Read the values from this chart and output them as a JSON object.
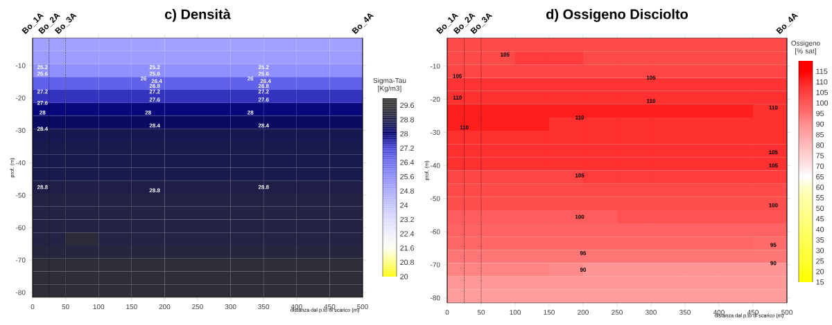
{
  "chart_data": [
    {
      "type": "heatmap",
      "title": "c) Densità",
      "xlabel": "distanza dal p.to di scarico (m)",
      "ylabel": "prof. (m)",
      "clabel": "Sigma-Tau [Kg/m3]",
      "x": [
        25,
        75,
        125,
        175,
        225,
        275,
        325,
        375,
        425,
        475
      ],
      "y": [
        -3.5,
        -7.5,
        -11.5,
        -15.5,
        -19.5,
        -23.5,
        -27.5,
        -31.5,
        -35.5,
        -39.5,
        -43.5,
        -47.5,
        -51.5,
        -55.5,
        -59.5,
        -63.5,
        -67.5,
        -71.5,
        -75.5,
        -79.5
      ],
      "cells": [
        [
          25.0,
          25.0,
          25.0,
          25.0,
          25.0,
          25.0,
          25.0,
          25.0,
          25.0,
          25.0
        ],
        [
          25.1,
          25.1,
          25.1,
          25.1,
          25.1,
          25.1,
          25.1,
          25.1,
          25.1,
          25.1
        ],
        [
          25.5,
          25.5,
          25.5,
          25.5,
          25.5,
          25.5,
          25.5,
          25.5,
          25.5,
          25.5
        ],
        [
          26.6,
          26.6,
          26.6,
          26.6,
          26.6,
          26.6,
          26.6,
          26.6,
          26.6,
          26.6
        ],
        [
          27.4,
          27.4,
          27.4,
          27.4,
          27.4,
          27.4,
          27.4,
          27.4,
          27.4,
          27.4
        ],
        [
          27.9,
          27.9,
          27.9,
          27.9,
          27.9,
          27.9,
          27.9,
          27.9,
          27.9,
          27.9
        ],
        [
          28.3,
          28.3,
          28.3,
          28.3,
          28.3,
          28.3,
          28.3,
          28.3,
          28.3,
          28.3
        ],
        [
          28.6,
          28.6,
          28.6,
          28.6,
          28.6,
          28.6,
          28.6,
          28.6,
          28.6,
          28.6
        ],
        [
          28.7,
          28.7,
          28.7,
          28.7,
          28.7,
          28.7,
          28.7,
          28.7,
          28.7,
          28.7
        ],
        [
          28.7,
          28.7,
          28.7,
          28.7,
          28.7,
          28.7,
          28.7,
          28.7,
          28.7,
          28.7
        ],
        [
          28.7,
          28.7,
          28.7,
          28.7,
          28.7,
          28.7,
          28.7,
          28.7,
          28.7,
          28.7
        ],
        [
          28.8,
          28.8,
          28.8,
          28.8,
          28.8,
          28.8,
          28.8,
          28.8,
          28.8,
          28.8
        ],
        [
          29.0,
          29.0,
          29.0,
          29.0,
          29.0,
          29.0,
          29.0,
          29.0,
          29.0,
          29.0
        ],
        [
          29.0,
          29.0,
          29.0,
          29.0,
          29.0,
          29.0,
          29.0,
          29.0,
          29.0,
          29.0
        ],
        [
          29.0,
          29.0,
          29.0,
          29.0,
          29.0,
          29.0,
          29.0,
          29.0,
          29.0,
          29.0
        ],
        [
          29.0,
          29.3,
          29.0,
          29.0,
          29.0,
          29.0,
          29.0,
          29.0,
          29.0,
          29.0
        ],
        [
          29.1,
          29.1,
          29.1,
          29.1,
          29.1,
          29.1,
          29.1,
          29.1,
          29.1,
          29.1
        ],
        [
          29.4,
          29.4,
          29.4,
          29.4,
          29.4,
          29.4,
          29.4,
          29.4,
          29.4,
          29.4
        ],
        [
          29.4,
          29.4,
          29.4,
          29.4,
          29.4,
          29.4,
          29.4,
          29.4,
          29.4,
          29.4
        ],
        [
          29.4,
          29.4,
          29.4,
          29.4,
          29.4,
          29.4,
          29.4,
          29.4,
          29.4,
          29.4
        ]
      ],
      "xlim": [
        0,
        500
      ],
      "ylim": [
        -81.5,
        -1.5
      ],
      "xticks": [
        0,
        50,
        100,
        150,
        200,
        250,
        300,
        350,
        400,
        450,
        500
      ],
      "yticks": [
        -80,
        -70,
        -60,
        -50,
        -40,
        -30,
        -20,
        -10
      ],
      "clim": [
        20,
        30
      ],
      "cticks": [
        20,
        20.8,
        21.6,
        22.4,
        23.2,
        24,
        24.8,
        25.6,
        26.4,
        27.2,
        28,
        28.8,
        29.6
      ],
      "colors": [
        "#ffff00",
        "#ffff80",
        "#fffff0",
        "#f0f0ff",
        "#dcdcff",
        "#c4c4ff",
        "#a8a8ff",
        "#8c8cff",
        "#6b6bf0",
        "#4444d8",
        "#000070",
        "#1e1e48",
        "#333333"
      ],
      "ref_lines": [
        {
          "axis": "x",
          "value": 0,
          "label": "Bo_1A",
          "line_style": "solid"
        },
        {
          "axis": "x",
          "value": 25,
          "label": "Bo_2A",
          "line_style": "dotted"
        },
        {
          "axis": "x",
          "value": 50,
          "label": "Bo_3A",
          "line_style": "dotted"
        },
        {
          "axis": "x",
          "value": 500,
          "label": "Bo_4A",
          "line_style": "solid"
        }
      ],
      "annotations": [
        "25.2",
        "25.6",
        "27.2",
        "27.6",
        "28",
        "28.4",
        "28.8",
        "25.2",
        "25.6",
        "26",
        "26.4",
        "26.8",
        "27.2",
        "27.6",
        "28",
        "28.4",
        "28.8",
        "25.2",
        "25.6",
        "26",
        "26.4",
        "26.8",
        "27.2",
        "27.6",
        "28",
        "28.4",
        "28.8"
      ]
    },
    {
      "type": "heatmap",
      "title": "d) Ossigeno Disciolto",
      "xlabel": "distanza dal p.to di scarico (m)",
      "ylabel": "prof. (m)",
      "clabel": "Ossigeno [% sat]",
      "x": [
        25,
        75,
        125,
        175,
        225,
        275,
        325,
        375,
        425,
        475
      ],
      "y": [
        -3.5,
        -7.5,
        -11.5,
        -15.5,
        -19.5,
        -23.5,
        -27.5,
        -31.5,
        -35.5,
        -39.5,
        -43.5,
        -47.5,
        -51.5,
        -55.5,
        -59.5,
        -63.5,
        -67.5,
        -71.5,
        -75.5,
        -79.5
      ],
      "cells": [
        [
          103,
          103,
          103,
          103,
          103,
          103,
          103,
          103,
          103,
          103
        ],
        [
          103,
          103,
          106,
          106,
          103,
          103,
          103,
          103,
          103,
          103
        ],
        [
          104,
          104,
          104,
          104,
          104,
          104,
          104,
          104,
          104,
          104
        ],
        [
          107,
          107,
          107,
          107,
          107,
          107,
          107,
          107,
          107,
          107
        ],
        [
          108,
          108,
          108,
          108,
          108,
          108,
          108,
          108,
          108,
          108
        ],
        [
          111,
          111,
          111,
          111,
          111,
          111,
          111,
          111,
          111,
          108
        ],
        [
          111,
          111,
          111,
          108,
          108,
          108,
          108,
          108,
          108,
          108
        ],
        [
          108,
          108,
          108,
          108,
          108,
          108,
          108,
          108,
          108,
          108
        ],
        [
          108,
          108,
          108,
          108,
          108,
          108,
          108,
          108,
          108,
          108
        ],
        [
          108,
          108,
          108,
          108,
          108,
          108,
          108,
          108,
          108,
          108
        ],
        [
          104,
          104,
          104,
          104,
          106,
          106,
          106,
          106,
          106,
          106
        ],
        [
          103,
          103,
          103,
          103,
          103,
          103,
          103,
          103,
          103,
          103
        ],
        [
          102,
          102,
          102,
          102,
          102,
          102,
          102,
          102,
          102,
          102
        ],
        [
          99,
          99,
          99,
          99,
          99,
          101,
          101,
          101,
          101,
          101
        ],
        [
          98,
          98,
          98,
          98,
          98,
          98,
          98,
          98,
          98,
          98
        ],
        [
          97,
          97,
          97,
          97,
          97,
          97,
          97,
          97,
          97,
          96
        ],
        [
          94,
          94,
          94,
          94,
          94,
          94,
          94,
          94,
          94,
          94
        ],
        [
          92,
          92,
          92,
          91,
          89,
          89,
          89,
          89,
          89,
          89
        ],
        [
          88,
          88,
          88,
          88,
          88,
          88,
          88,
          88,
          88,
          88
        ],
        [
          87,
          87,
          87,
          87,
          87,
          87,
          87,
          87,
          87,
          87
        ]
      ],
      "xlim": [
        0,
        500
      ],
      "ylim": [
        -81.5,
        -1.5
      ],
      "xticks": [
        0,
        50,
        100,
        150,
        200,
        250,
        300,
        350,
        400,
        450,
        500
      ],
      "yticks": [
        -80,
        -70,
        -60,
        -50,
        -40,
        -30,
        -20,
        -10
      ],
      "clim": [
        15,
        120
      ],
      "cticks": [
        15,
        20,
        25,
        30,
        35,
        40,
        45,
        50,
        55,
        60,
        65,
        70,
        75,
        80,
        85,
        90,
        95,
        100,
        105,
        110,
        115
      ],
      "colors": [
        "#ffff00",
        "#ffff14",
        "#ffff30",
        "#ffff40",
        "#ffff55",
        "#ffff6a",
        "#ffff80",
        "#ffff95",
        "#ffffaa",
        "#ffffc8",
        "#ffffff",
        "#ffe6e6",
        "#ffd0d0",
        "#ffbbbb",
        "#ffa5a5",
        "#ff9090",
        "#ff7070",
        "#ff5858",
        "#ff4040",
        "#ff2525",
        "#ff0000"
      ],
      "ref_lines": [
        {
          "axis": "x",
          "value": 0,
          "label": "Bo_1A",
          "line_style": "solid"
        },
        {
          "axis": "x",
          "value": 25,
          "label": "Bo_2A",
          "line_style": "dotted"
        },
        {
          "axis": "x",
          "value": 50,
          "label": "Bo_3A",
          "line_style": "dotted"
        },
        {
          "axis": "x",
          "value": 500,
          "label": "Bo_4A",
          "line_style": "solid"
        }
      ],
      "annotations": [
        "105",
        "105",
        "105",
        "110",
        "110",
        "110",
        "110",
        "110",
        "105",
        "105",
        "105",
        "100",
        "100",
        "95",
        "95",
        "90",
        "90"
      ]
    }
  ]
}
